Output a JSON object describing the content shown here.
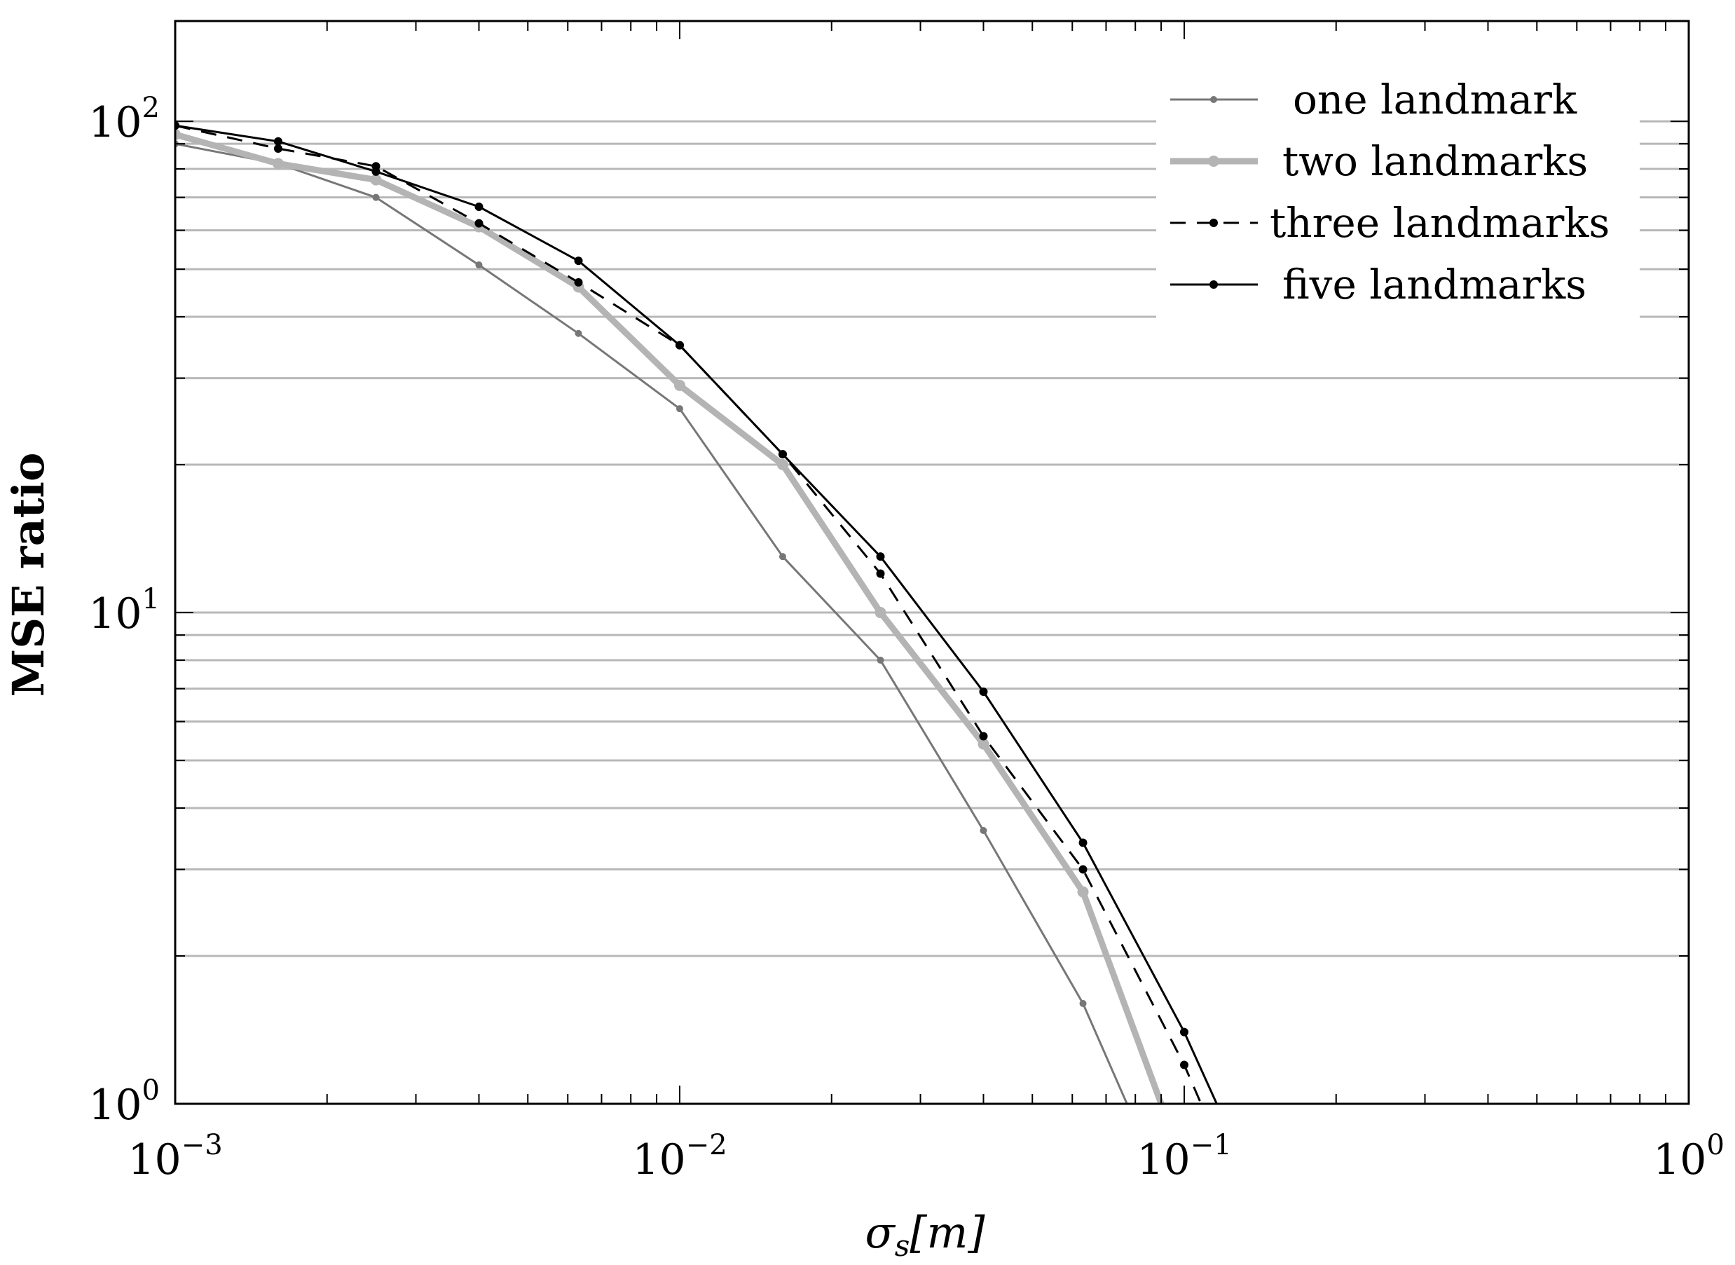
{
  "chart_data": {
    "type": "line",
    "title": "",
    "xlabel": "σs[m]",
    "xlabel_parts": {
      "base": "σ",
      "sub": "s",
      "rest": "[m]"
    },
    "ylabel": "MSE ratio",
    "x_scale": "log",
    "y_scale": "log",
    "xlim": [
      0.001,
      1
    ],
    "ylim": [
      1,
      160
    ],
    "x_ticks": [
      {
        "value": 0.001,
        "base": "10",
        "exp": "−3"
      },
      {
        "value": 0.01,
        "base": "10",
        "exp": "−2"
      },
      {
        "value": 0.1,
        "base": "10",
        "exp": "−1"
      },
      {
        "value": 1,
        "base": "10",
        "exp": "0"
      }
    ],
    "y_ticks": [
      {
        "value": 1,
        "base": "10",
        "exp": "0"
      },
      {
        "value": 10,
        "base": "10",
        "exp": "1"
      },
      {
        "value": 100,
        "base": "10",
        "exp": "2"
      }
    ],
    "grid": "horizontal-major-minor",
    "legend_position": "top-right",
    "series": [
      {
        "name": "one landmark",
        "color": "#777777",
        "style": "solid-thin",
        "x": [
          0.001,
          0.0016,
          0.0025,
          0.004,
          0.0063,
          0.01,
          0.016,
          0.025,
          0.04,
          0.063,
          0.077
        ],
        "y": [
          90,
          82,
          70,
          51,
          37,
          26,
          13,
          8,
          3.6,
          1.6,
          1
        ]
      },
      {
        "name": "two landmarks",
        "color": "#b4b4b4",
        "style": "solid-thick",
        "x": [
          0.001,
          0.0016,
          0.0025,
          0.004,
          0.0063,
          0.01,
          0.016,
          0.025,
          0.04,
          0.063,
          0.09
        ],
        "y": [
          94,
          82,
          76,
          61,
          46,
          29,
          20,
          10,
          5.4,
          2.7,
          1
        ]
      },
      {
        "name": "three landmarks",
        "color": "#000000",
        "style": "dashed",
        "x": [
          0.001,
          0.0016,
          0.0025,
          0.004,
          0.0063,
          0.01,
          0.016,
          0.025,
          0.04,
          0.063,
          0.1,
          0.108
        ],
        "y": [
          98,
          88,
          81,
          62,
          47,
          35,
          21,
          12,
          5.6,
          3,
          1.2,
          1
        ]
      },
      {
        "name": "five landmarks",
        "color": "#000000",
        "style": "solid",
        "x": [
          0.001,
          0.0016,
          0.0025,
          0.004,
          0.0063,
          0.01,
          0.016,
          0.025,
          0.04,
          0.063,
          0.1,
          0.116
        ],
        "y": [
          98,
          91,
          79,
          67,
          52,
          35,
          21,
          13,
          6.9,
          3.4,
          1.4,
          1
        ]
      }
    ]
  }
}
